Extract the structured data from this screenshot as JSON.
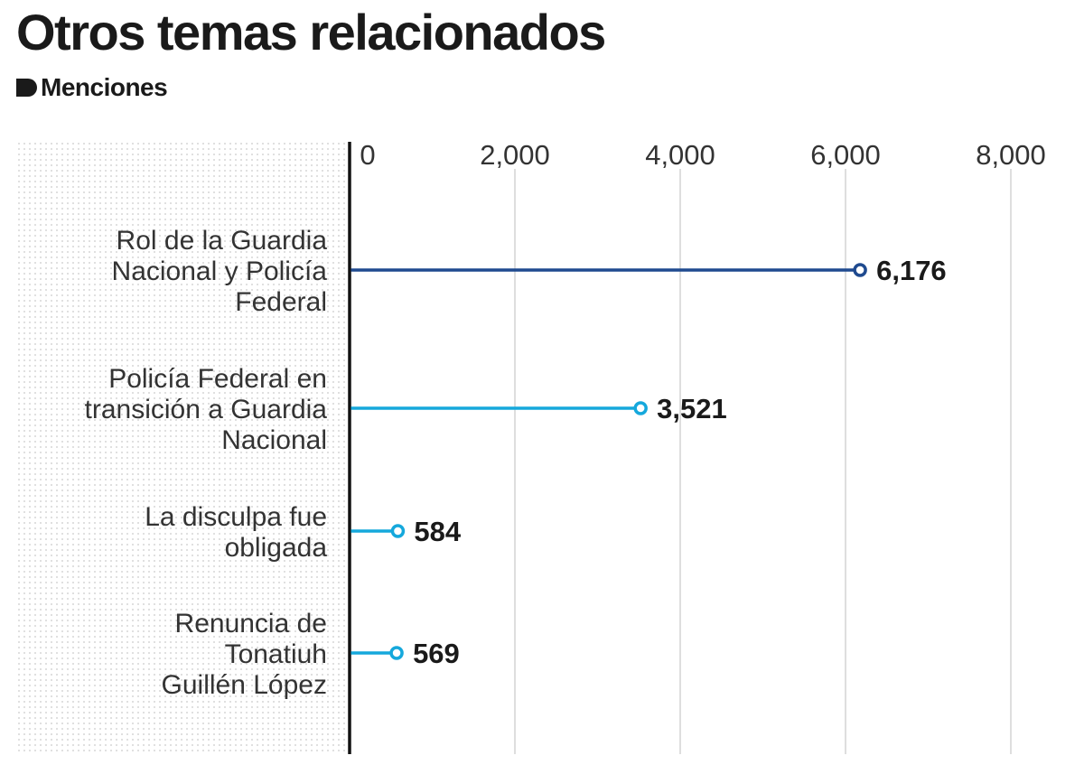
{
  "title": "Otros temas relacionados",
  "subtitle": "Menciones",
  "subtitle_icon": "tag-marker-icon",
  "colors": {
    "text": "#1a1a1a",
    "highlight": "#1f4a8f",
    "series": "#15a8dc",
    "gridline": "#c8c8c8",
    "axis": "#111111",
    "dots": "#c9c9c9"
  },
  "chart_data": {
    "type": "lollipop",
    "orientation": "horizontal",
    "title": "Otros temas relacionados",
    "subtitle": "Menciones",
    "categories": [
      [
        "Rol de la Guardia",
        "Nacional y Policía",
        "Federal"
      ],
      [
        "Policía Federal en",
        "transición a Guardia",
        "Nacional"
      ],
      [
        "La disculpa fue",
        "obligada"
      ],
      [
        "Renuncia de",
        "Tonatiuh",
        "Guillén López"
      ]
    ],
    "values": [
      6176,
      3521,
      584,
      569
    ],
    "value_labels": [
      "6,176",
      "3,521",
      "584",
      "569"
    ],
    "highlighted": [
      true,
      false,
      false,
      false
    ],
    "xlim": [
      0,
      8000
    ],
    "xticks": [
      0,
      2000,
      4000,
      6000,
      8000
    ],
    "xtick_labels": [
      "0",
      "2,000",
      "4,000",
      "6,000",
      "8,000"
    ],
    "tick_position": "top",
    "grid": true,
    "legend": "none"
  }
}
